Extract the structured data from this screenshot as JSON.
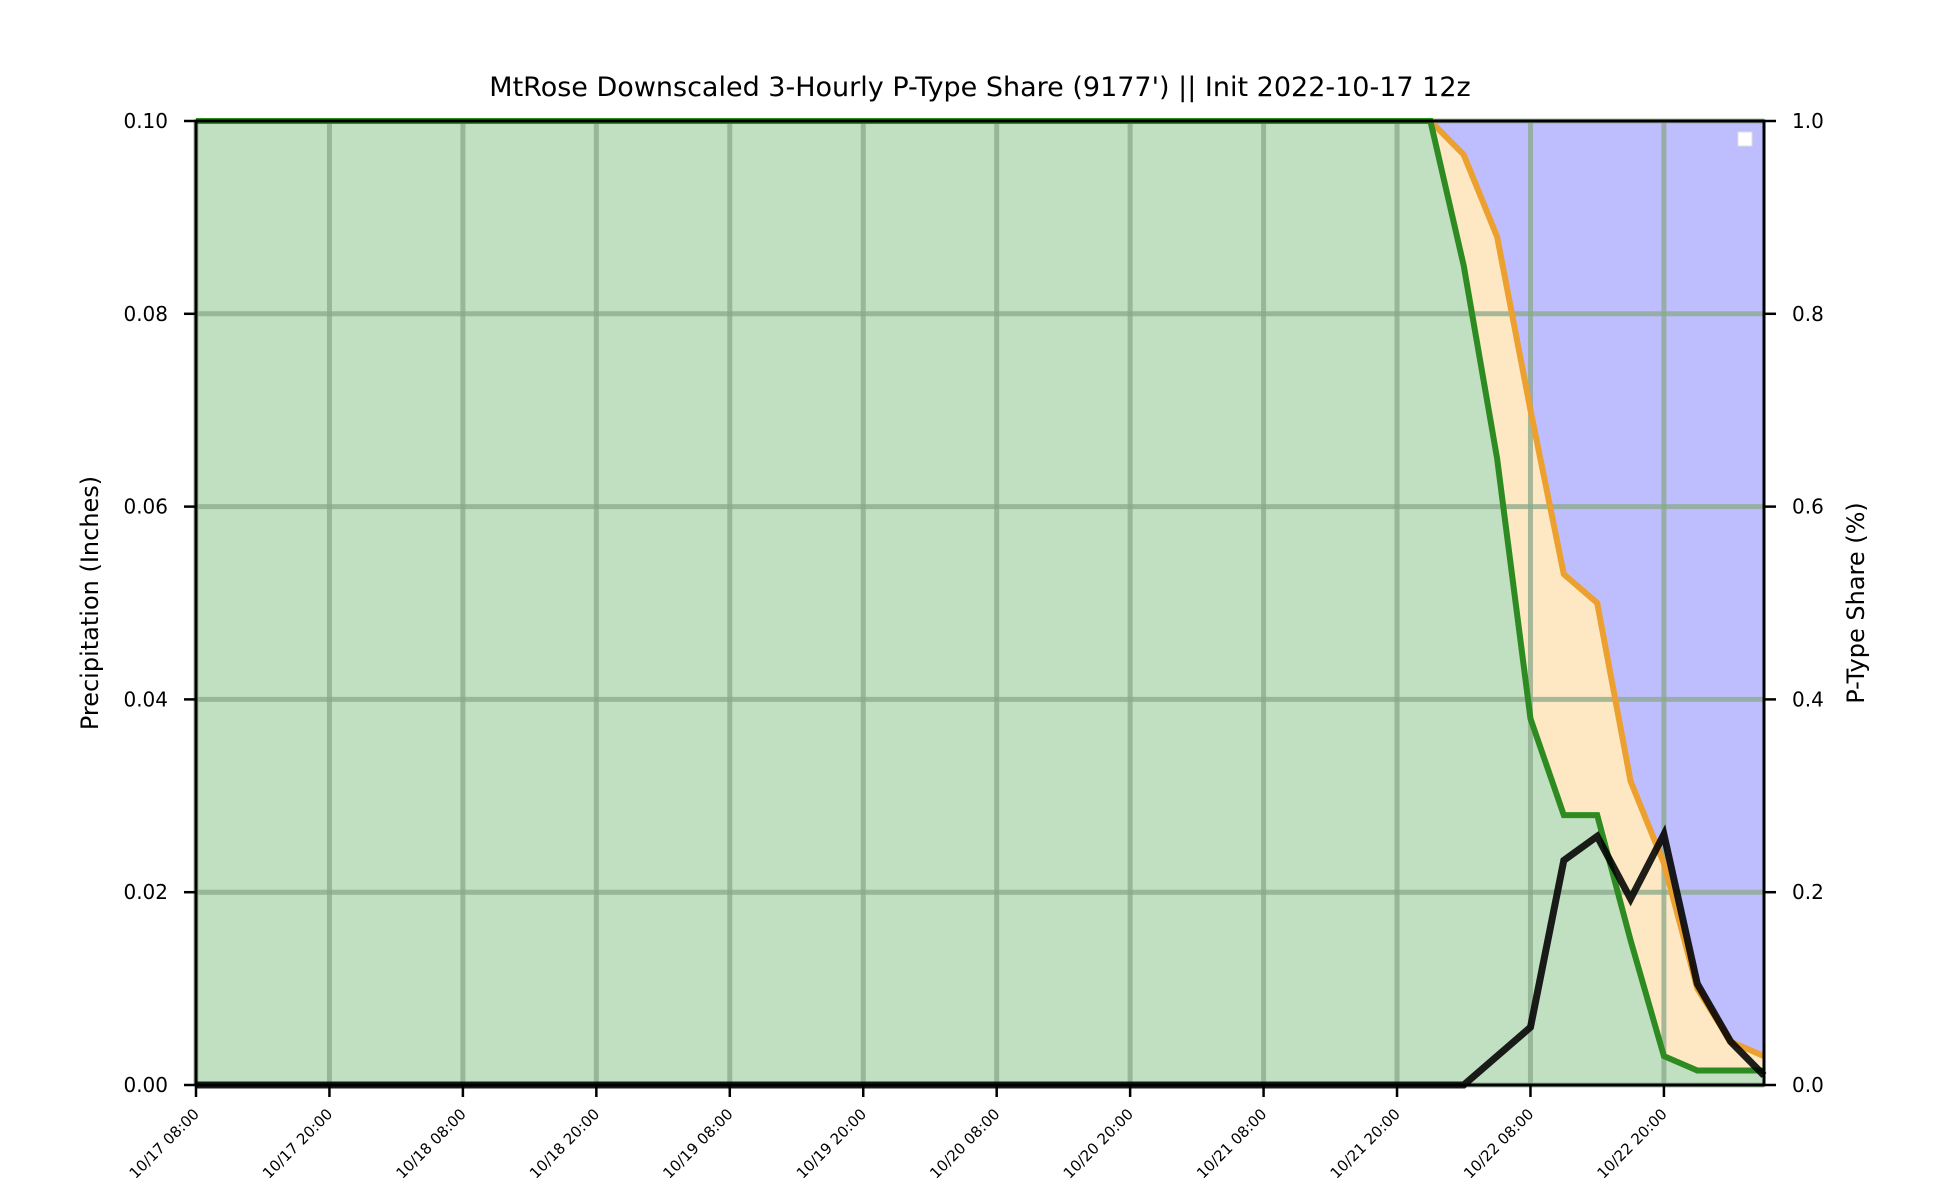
{
  "chart_data": {
    "type": "area",
    "title": "MtRose Downscaled 3-Hourly P-Type Share (9177') || Init 2022-10-17 12z",
    "xlabel": "",
    "ylabel": "Precipitation (Inches)",
    "y2label": "P-Type Share (%)",
    "ylim": [
      0,
      0.1
    ],
    "y2lim": [
      0,
      1.0
    ],
    "yticks": [
      "0.00",
      "0.02",
      "0.04",
      "0.06",
      "0.08",
      "0.10"
    ],
    "y2ticks": [
      "0.0",
      "0.2",
      "0.4",
      "0.6",
      "0.8",
      "1.0"
    ],
    "xticks": [
      "10/17 08:00",
      "10/17 20:00",
      "10/18 08:00",
      "10/18 20:00",
      "10/19 08:00",
      "10/19 20:00",
      "10/20 08:00",
      "10/20 20:00",
      "10/21 08:00",
      "10/21 20:00",
      "10/22 08:00",
      "10/22 20:00"
    ],
    "xlim": [
      "10/17 08:00",
      "10/23 05:00"
    ],
    "grid": true,
    "legend": "top-right",
    "colors": {
      "rain_fill": "#c1dfc1",
      "rain_line": "#2e8b22",
      "mix_fill": "#fde8c3",
      "mix_line": "#eba030",
      "snow_fill": "#bebefe",
      "precip_line": "#000000",
      "grid": "#8aa88a"
    },
    "x": [
      "10/17 08:00",
      "10/17 11:00",
      "10/17 14:00",
      "10/17 17:00",
      "10/17 20:00",
      "10/17 23:00",
      "10/18 02:00",
      "10/18 05:00",
      "10/18 08:00",
      "10/18 11:00",
      "10/18 14:00",
      "10/18 17:00",
      "10/18 20:00",
      "10/18 23:00",
      "10/19 02:00",
      "10/19 05:00",
      "10/19 08:00",
      "10/19 11:00",
      "10/19 14:00",
      "10/19 17:00",
      "10/19 20:00",
      "10/19 23:00",
      "10/20 02:00",
      "10/20 05:00",
      "10/20 08:00",
      "10/20 11:00",
      "10/20 14:00",
      "10/20 17:00",
      "10/20 20:00",
      "10/20 23:00",
      "10/21 02:00",
      "10/21 05:00",
      "10/21 08:00",
      "10/21 11:00",
      "10/21 14:00",
      "10/21 17:00",
      "10/21 20:00",
      "10/21 23:00",
      "10/22 02:00",
      "10/22 05:00",
      "10/22 08:00",
      "10/22 11:00",
      "10/22 14:00",
      "10/22 17:00",
      "10/22 20:00",
      "10/22 23:00",
      "10/23 02:00",
      "10/23 05:00"
    ],
    "series": [
      {
        "key": "rain_share",
        "values": [
          1,
          1,
          1,
          1,
          1,
          1,
          1,
          1,
          1,
          1,
          1,
          1,
          1,
          1,
          1,
          1,
          1,
          1,
          1,
          1,
          1,
          1,
          1,
          1,
          1,
          1,
          1,
          1,
          1,
          1,
          1,
          1,
          1,
          1,
          1,
          1,
          1,
          1,
          0.85,
          0.65,
          0.38,
          0.28,
          0.28,
          0.15,
          0.03,
          0.015,
          0.015,
          0.015
        ]
      },
      {
        "key": "rain_plus_mix_share",
        "values": [
          1,
          1,
          1,
          1,
          1,
          1,
          1,
          1,
          1,
          1,
          1,
          1,
          1,
          1,
          1,
          1,
          1,
          1,
          1,
          1,
          1,
          1,
          1,
          1,
          1,
          1,
          1,
          1,
          1,
          1,
          1,
          1,
          1,
          1,
          1,
          1,
          1,
          1,
          0.965,
          0.88,
          0.7,
          0.53,
          0.5,
          0.315,
          0.23,
          0.1,
          0.045,
          0.03
        ]
      },
      {
        "key": "precipitation",
        "values": [
          0,
          0,
          0,
          0,
          0,
          0,
          0,
          0,
          0,
          0,
          0,
          0,
          0,
          0,
          0,
          0,
          0,
          0,
          0,
          0,
          0,
          0,
          0,
          0,
          0,
          0,
          0,
          0,
          0,
          0,
          0,
          0,
          0,
          0,
          0,
          0,
          0,
          0,
          0,
          0.003,
          0.006,
          0.0233,
          0.0258,
          0.0193,
          0.026,
          0.0105,
          0.0045,
          0.001
        ]
      }
    ]
  }
}
